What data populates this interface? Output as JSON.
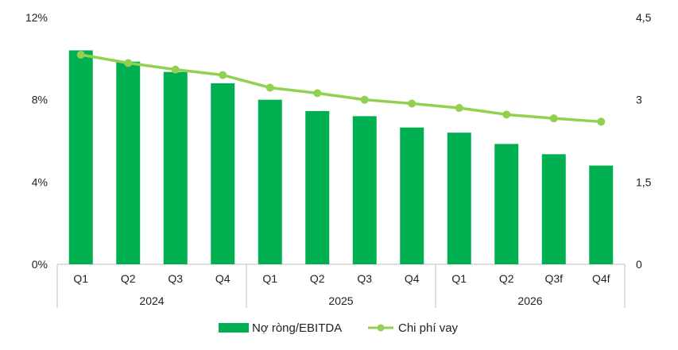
{
  "chart_data": {
    "type": "bar",
    "categories": [
      "Q1",
      "Q2",
      "Q3",
      "Q4",
      "Q1",
      "Q2",
      "Q3",
      "Q4",
      "Q1",
      "Q2",
      "Q3f",
      "Q4f"
    ],
    "groups": [
      {
        "label": "2024",
        "span": 4
      },
      {
        "label": "2025",
        "span": 4
      },
      {
        "label": "2026",
        "span": 4
      }
    ],
    "series": [
      {
        "name": "Nợ ròng/EBITDA",
        "kind": "bar",
        "axis": "left",
        "color": "#00b050",
        "values": [
          10.4,
          9.85,
          9.35,
          8.8,
          8.0,
          7.45,
          7.2,
          6.65,
          6.4,
          5.85,
          5.35,
          4.8
        ]
      },
      {
        "name": "Chi phí vay",
        "kind": "line",
        "axis": "right",
        "color": "#92d050",
        "values": [
          3.82,
          3.67,
          3.55,
          3.45,
          3.22,
          3.12,
          3.0,
          2.93,
          2.85,
          2.73,
          2.66,
          2.6
        ]
      }
    ],
    "y_left": {
      "min": 0,
      "max": 12,
      "ticks": [
        0,
        4,
        8,
        12
      ],
      "tick_labels": [
        "0%",
        "4%",
        "8%",
        "12%"
      ]
    },
    "y_right": {
      "min": 0,
      "max": 4.5,
      "ticks": [
        0,
        1.5,
        3,
        4.5
      ],
      "tick_labels": [
        "0",
        "1,5",
        "3",
        "4,5"
      ]
    },
    "grid": false,
    "legend": "bottom-center"
  }
}
